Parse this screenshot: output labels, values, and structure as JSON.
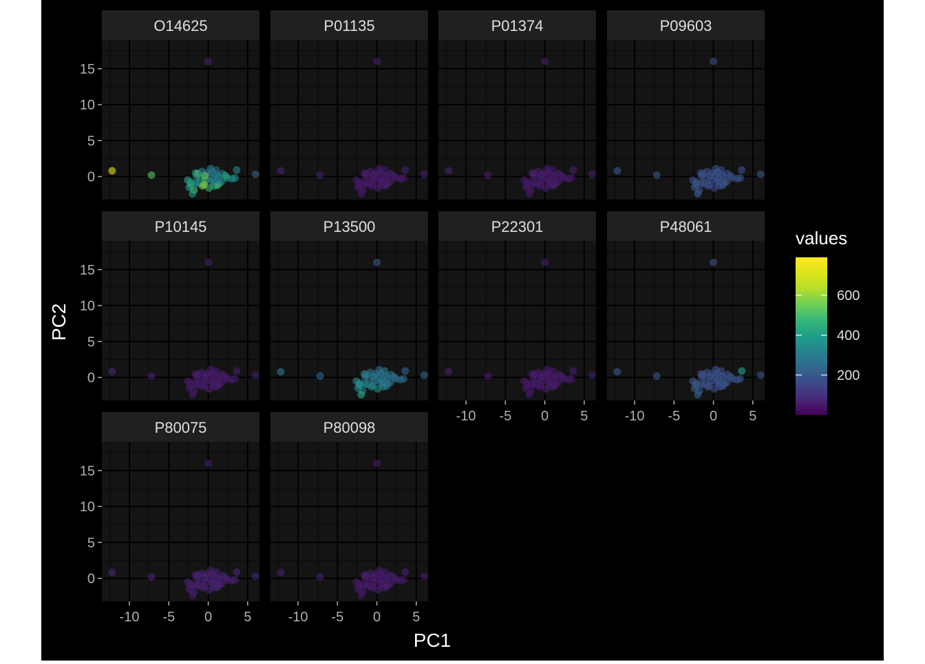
{
  "chart_data": {
    "type": "scatter",
    "facet_layout": "wrap, 4 columns",
    "xlabel": "PC1",
    "ylabel": "PC2",
    "xlim": [
      -13.5,
      6.5
    ],
    "ylim": [
      -3.2,
      19
    ],
    "x_ticks": [
      -10,
      -5,
      0,
      5
    ],
    "x_tick_labels": [
      "-10",
      "-5",
      "0",
      "5"
    ],
    "y_ticks": [
      0,
      5,
      10,
      15
    ],
    "y_tick_labels": [
      "0",
      "5",
      "10",
      "15"
    ],
    "grid": true,
    "theme": "dark",
    "colors": {
      "background": "#000000",
      "panel": "#141414",
      "strip": "#202020",
      "grid_major": "#000000",
      "grid_minor": "#0a0a0a",
      "text": "#ffffff",
      "axis_text": "#b0b0b0"
    },
    "legend": {
      "title": "values",
      "position": "right",
      "colormap": "viridis",
      "range": [
        0,
        790
      ],
      "ticks": [
        200,
        400,
        600
      ],
      "tick_labels": [
        "200",
        "400",
        "600"
      ]
    },
    "points": {
      "x": [
        -12.2,
        -7.2,
        0,
        6,
        3.6,
        -2.6,
        -2.2,
        -1.6,
        -1.3,
        -1.0,
        -0.5,
        -0.2,
        0.3,
        0.6,
        1.0,
        1.4,
        1.8,
        2.4,
        3.0,
        3.4,
        -2.4,
        -1.8,
        -1.2,
        -0.7,
        -0.3,
        0.2,
        0.8,
        1.2,
        1.7,
        2.2,
        -2.0,
        -1.5,
        -0.8,
        0.1,
        0.5,
        1.1,
        -2.2,
        -1.6,
        -0.4,
        0.7,
        1.3,
        0.4
      ],
      "y": [
        0.8,
        0.2,
        16,
        0.3,
        0.9,
        -0.5,
        -0.8,
        0.5,
        0.4,
        -0.2,
        -1.1,
        0.5,
        1.1,
        -0.3,
        0.9,
        -0.9,
        0.4,
        -0.2,
        -0.3,
        -0.2,
        -1.5,
        -1.9,
        -1.0,
        -1.3,
        -0.5,
        0.2,
        -1.3,
        -1.2,
        -0.7,
        0.1,
        -2.4,
        0.1,
        0.7,
        -1.6,
        0.6,
        0.2,
        -1.1,
        -0.9,
        0.1,
        -0.8,
        -0.1,
        -0.6
      ]
    },
    "facets": [
      {
        "label": "O14625",
        "values": [
          720,
          520,
          60,
          220,
          330,
          430,
          400,
          380,
          560,
          450,
          620,
          280,
          320,
          290,
          260,
          330,
          300,
          380,
          350,
          340,
          420,
          500,
          320,
          560,
          480,
          240,
          450,
          500,
          340,
          420,
          380,
          360,
          300,
          470,
          280,
          320,
          400,
          360,
          540,
          310,
          330,
          300
        ]
      },
      {
        "label": "P01135",
        "values": [
          60,
          55,
          50,
          55,
          60,
          50,
          45,
          55,
          60,
          50,
          55,
          60,
          55,
          50,
          45,
          55,
          60,
          50,
          55,
          45,
          55,
          50,
          60,
          45,
          55,
          50,
          55,
          60,
          50,
          55,
          45,
          55,
          50,
          60,
          55,
          50,
          45,
          55,
          60,
          50,
          55,
          50
        ]
      },
      {
        "label": "P01374",
        "values": [
          60,
          55,
          50,
          55,
          60,
          50,
          45,
          55,
          60,
          50,
          55,
          60,
          55,
          50,
          45,
          55,
          60,
          50,
          55,
          45,
          55,
          50,
          60,
          45,
          55,
          50,
          55,
          60,
          50,
          55,
          45,
          55,
          50,
          60,
          55,
          50,
          45,
          55,
          60,
          50,
          55,
          50
        ]
      },
      {
        "label": "P09603",
        "values": [
          200,
          195,
          170,
          190,
          170,
          180,
          185,
          175,
          160,
          190,
          170,
          165,
          180,
          185,
          175,
          190,
          170,
          160,
          175,
          185,
          200,
          180,
          190,
          175,
          165,
          185,
          170,
          180,
          190,
          175,
          215,
          180,
          170,
          165,
          185,
          175,
          190,
          180,
          170,
          175,
          185,
          180
        ]
      },
      {
        "label": "P10145",
        "values": [
          80,
          60,
          50,
          55,
          60,
          50,
          45,
          55,
          60,
          50,
          55,
          60,
          55,
          50,
          45,
          55,
          60,
          50,
          55,
          45,
          55,
          50,
          60,
          45,
          55,
          50,
          55,
          60,
          50,
          55,
          45,
          55,
          50,
          60,
          55,
          50,
          45,
          55,
          60,
          50,
          55,
          50
        ]
      },
      {
        "label": "P13500",
        "values": [
          280,
          230,
          200,
          230,
          220,
          330,
          360,
          300,
          280,
          260,
          300,
          280,
          250,
          270,
          290,
          330,
          280,
          260,
          250,
          240,
          330,
          310,
          290,
          340,
          310,
          260,
          320,
          280,
          250,
          270,
          420,
          300,
          270,
          350,
          260,
          280,
          380,
          330,
          290,
          300,
          270,
          280
        ]
      },
      {
        "label": "P22301",
        "values": [
          60,
          55,
          50,
          55,
          60,
          50,
          45,
          55,
          60,
          50,
          55,
          60,
          55,
          50,
          45,
          55,
          60,
          50,
          55,
          45,
          55,
          50,
          60,
          45,
          55,
          50,
          55,
          60,
          50,
          55,
          45,
          55,
          50,
          60,
          55,
          50,
          45,
          55,
          60,
          50,
          55,
          50
        ]
      },
      {
        "label": "P48061",
        "values": [
          200,
          190,
          170,
          180,
          400,
          190,
          200,
          180,
          170,
          185,
          175,
          170,
          180,
          175,
          165,
          190,
          175,
          170,
          180,
          200,
          230,
          200,
          190,
          185,
          170,
          180,
          175,
          185,
          190,
          180,
          220,
          180,
          175,
          170,
          185,
          180,
          190,
          185,
          170,
          180,
          175,
          180
        ]
      },
      {
        "label": "P80075",
        "values": [
          80,
          70,
          50,
          60,
          75,
          60,
          55,
          65,
          70,
          60,
          65,
          70,
          65,
          60,
          55,
          65,
          70,
          60,
          65,
          55,
          65,
          60,
          70,
          55,
          65,
          60,
          65,
          70,
          60,
          65,
          55,
          65,
          60,
          70,
          65,
          60,
          55,
          65,
          70,
          60,
          65,
          60
        ]
      },
      {
        "label": "P80098",
        "values": [
          60,
          55,
          50,
          55,
          60,
          50,
          45,
          55,
          60,
          50,
          55,
          60,
          55,
          50,
          45,
          55,
          60,
          50,
          55,
          45,
          55,
          50,
          60,
          45,
          55,
          50,
          55,
          60,
          50,
          55,
          45,
          55,
          50,
          60,
          55,
          50,
          45,
          55,
          60,
          50,
          55,
          50
        ]
      }
    ]
  }
}
